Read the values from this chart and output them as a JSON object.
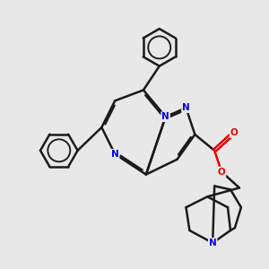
{
  "background_color": "#e8e8e8",
  "bond_color": "#1a1a1a",
  "N_color": "#0000ee",
  "O_color": "#ee0000",
  "bond_width": 1.8,
  "figsize": [
    3.0,
    3.0
  ],
  "dpi": 100,
  "xlim": [
    0,
    10
  ],
  "ylim": [
    0,
    10
  ]
}
